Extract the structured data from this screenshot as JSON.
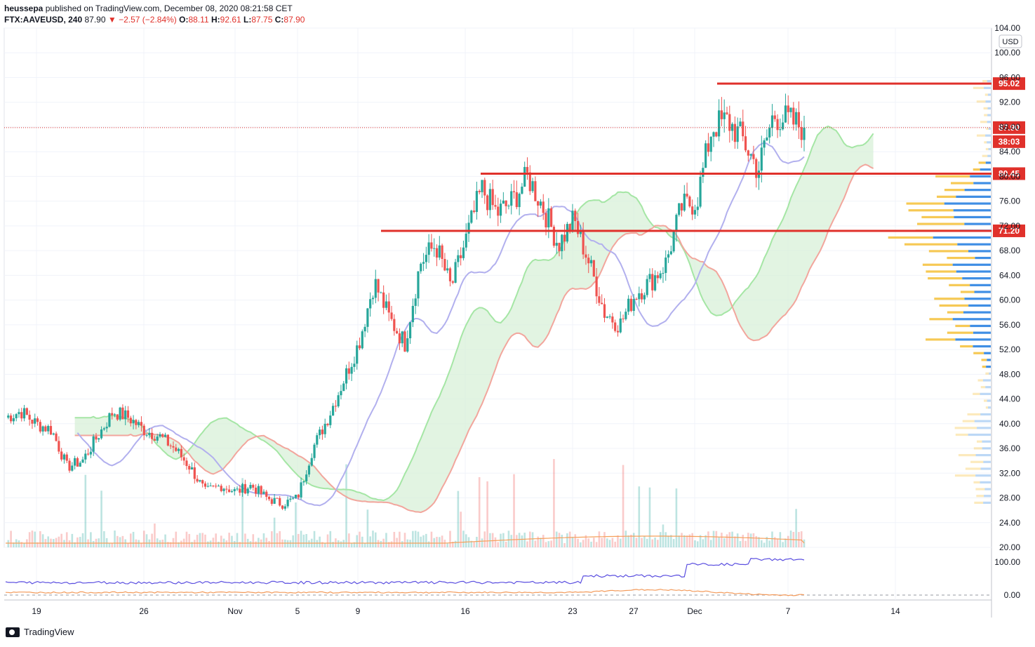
{
  "header": {
    "publisher": "heussepa",
    "published_text": "published on TradingView.com, December 08, 2020 08:21:58 CET",
    "symbol": "FTX:AAVEUSD, 240",
    "last": "87.90",
    "change": "▼ −2.57 (−2.84%)",
    "o_label": "O:",
    "o_value": "88.11",
    "h_label": "H:",
    "h_value": "92.61",
    "l_label": "L:",
    "l_value": "87.75",
    "c_label": "C:",
    "c_value": "87.90"
  },
  "colors": {
    "up": "#26a69a",
    "down": "#ef5350",
    "level_line": "#e0312b",
    "kijun": "#b2b0ee",
    "span_a": "#a5e6a5",
    "span_b": "#f2a69d",
    "cloud_up": "#d6efd6",
    "cloud_down": "#fbdbd8",
    "vp_blue": "#3f8ee4",
    "vp_yellow": "#f5c342",
    "osc_blue": "#5b4fe0",
    "osc_orange": "#f39a5a",
    "vol_ma": "#f5a05a"
  },
  "chart_data": {
    "type": "candlestick",
    "currency": "USD",
    "last_price": "87.90",
    "countdown": "38:03",
    "price_axis_ticks": [
      "104.00",
      "100.00",
      "96.00",
      "92.00",
      "88.00",
      "84.00",
      "80.00",
      "76.00",
      "72.00",
      "68.00",
      "64.00",
      "60.00",
      "56.00",
      "52.00",
      "48.00",
      "44.00",
      "40.00",
      "36.00",
      "32.00",
      "28.00",
      "24.00",
      "20.00"
    ],
    "time_axis_ticks": [
      "19",
      "26",
      "Nov",
      "5",
      "9",
      "16",
      "23",
      "27",
      "Dec",
      "7",
      "14"
    ],
    "osc_axis_ticks": [
      "100.00",
      "0.00"
    ],
    "ylim": [
      20,
      104
    ],
    "horizontal_levels": [
      {
        "label": "95.02",
        "value": 95.02
      },
      {
        "label": "80.45",
        "value": 80.45
      },
      {
        "label": "71.20",
        "value": 71.2
      }
    ],
    "price_path": [
      [
        "Oct 17",
        41
      ],
      [
        "Oct 18",
        42
      ],
      [
        "Oct 19",
        40
      ],
      [
        "Oct 20",
        39
      ],
      [
        "Oct 21",
        33
      ],
      [
        "Oct 22",
        34
      ],
      [
        "Oct 23",
        38
      ],
      [
        "Oct 24",
        42
      ],
      [
        "Oct 25",
        41
      ],
      [
        "Oct 26",
        39
      ],
      [
        "Oct 27",
        38
      ],
      [
        "Oct 28",
        36
      ],
      [
        "Oct 29",
        33
      ],
      [
        "Oct 30",
        29
      ],
      [
        "Oct 31",
        30
      ],
      [
        "Nov 1",
        29
      ],
      [
        "Nov 2",
        30
      ],
      [
        "Nov 3",
        28
      ],
      [
        "Nov 4",
        27
      ],
      [
        "Nov 5",
        28
      ],
      [
        "Nov 6",
        36
      ],
      [
        "Nov 7",
        41
      ],
      [
        "Nov 8",
        47
      ],
      [
        "Nov 9",
        53
      ],
      [
        "Nov 10",
        63
      ],
      [
        "Nov 11",
        57
      ],
      [
        "Nov 12",
        53
      ],
      [
        "Nov 13",
        66
      ],
      [
        "Nov 14",
        69
      ],
      [
        "Nov 15",
        62
      ],
      [
        "Nov 16",
        70
      ],
      [
        "Nov 17",
        78
      ],
      [
        "Nov 18",
        74
      ],
      [
        "Nov 19",
        76
      ],
      [
        "Nov 20",
        80
      ],
      [
        "Nov 21",
        75
      ],
      [
        "Nov 22",
        69
      ],
      [
        "Nov 23",
        73
      ],
      [
        "Nov 24",
        66
      ],
      [
        "Nov 25",
        58
      ],
      [
        "Nov 26",
        56
      ],
      [
        "Nov 27",
        61
      ],
      [
        "Nov 28",
        63
      ],
      [
        "Nov 29",
        66
      ],
      [
        "Nov 30",
        75
      ],
      [
        "Dec 1",
        76
      ],
      [
        "Dec 2",
        88
      ],
      [
        "Dec 3",
        89
      ],
      [
        "Dec 4",
        86
      ],
      [
        "Dec 5",
        81
      ],
      [
        "Dec 6",
        90
      ],
      [
        "Dec 7",
        89
      ],
      [
        "Dec 8",
        87.9
      ]
    ]
  }
}
